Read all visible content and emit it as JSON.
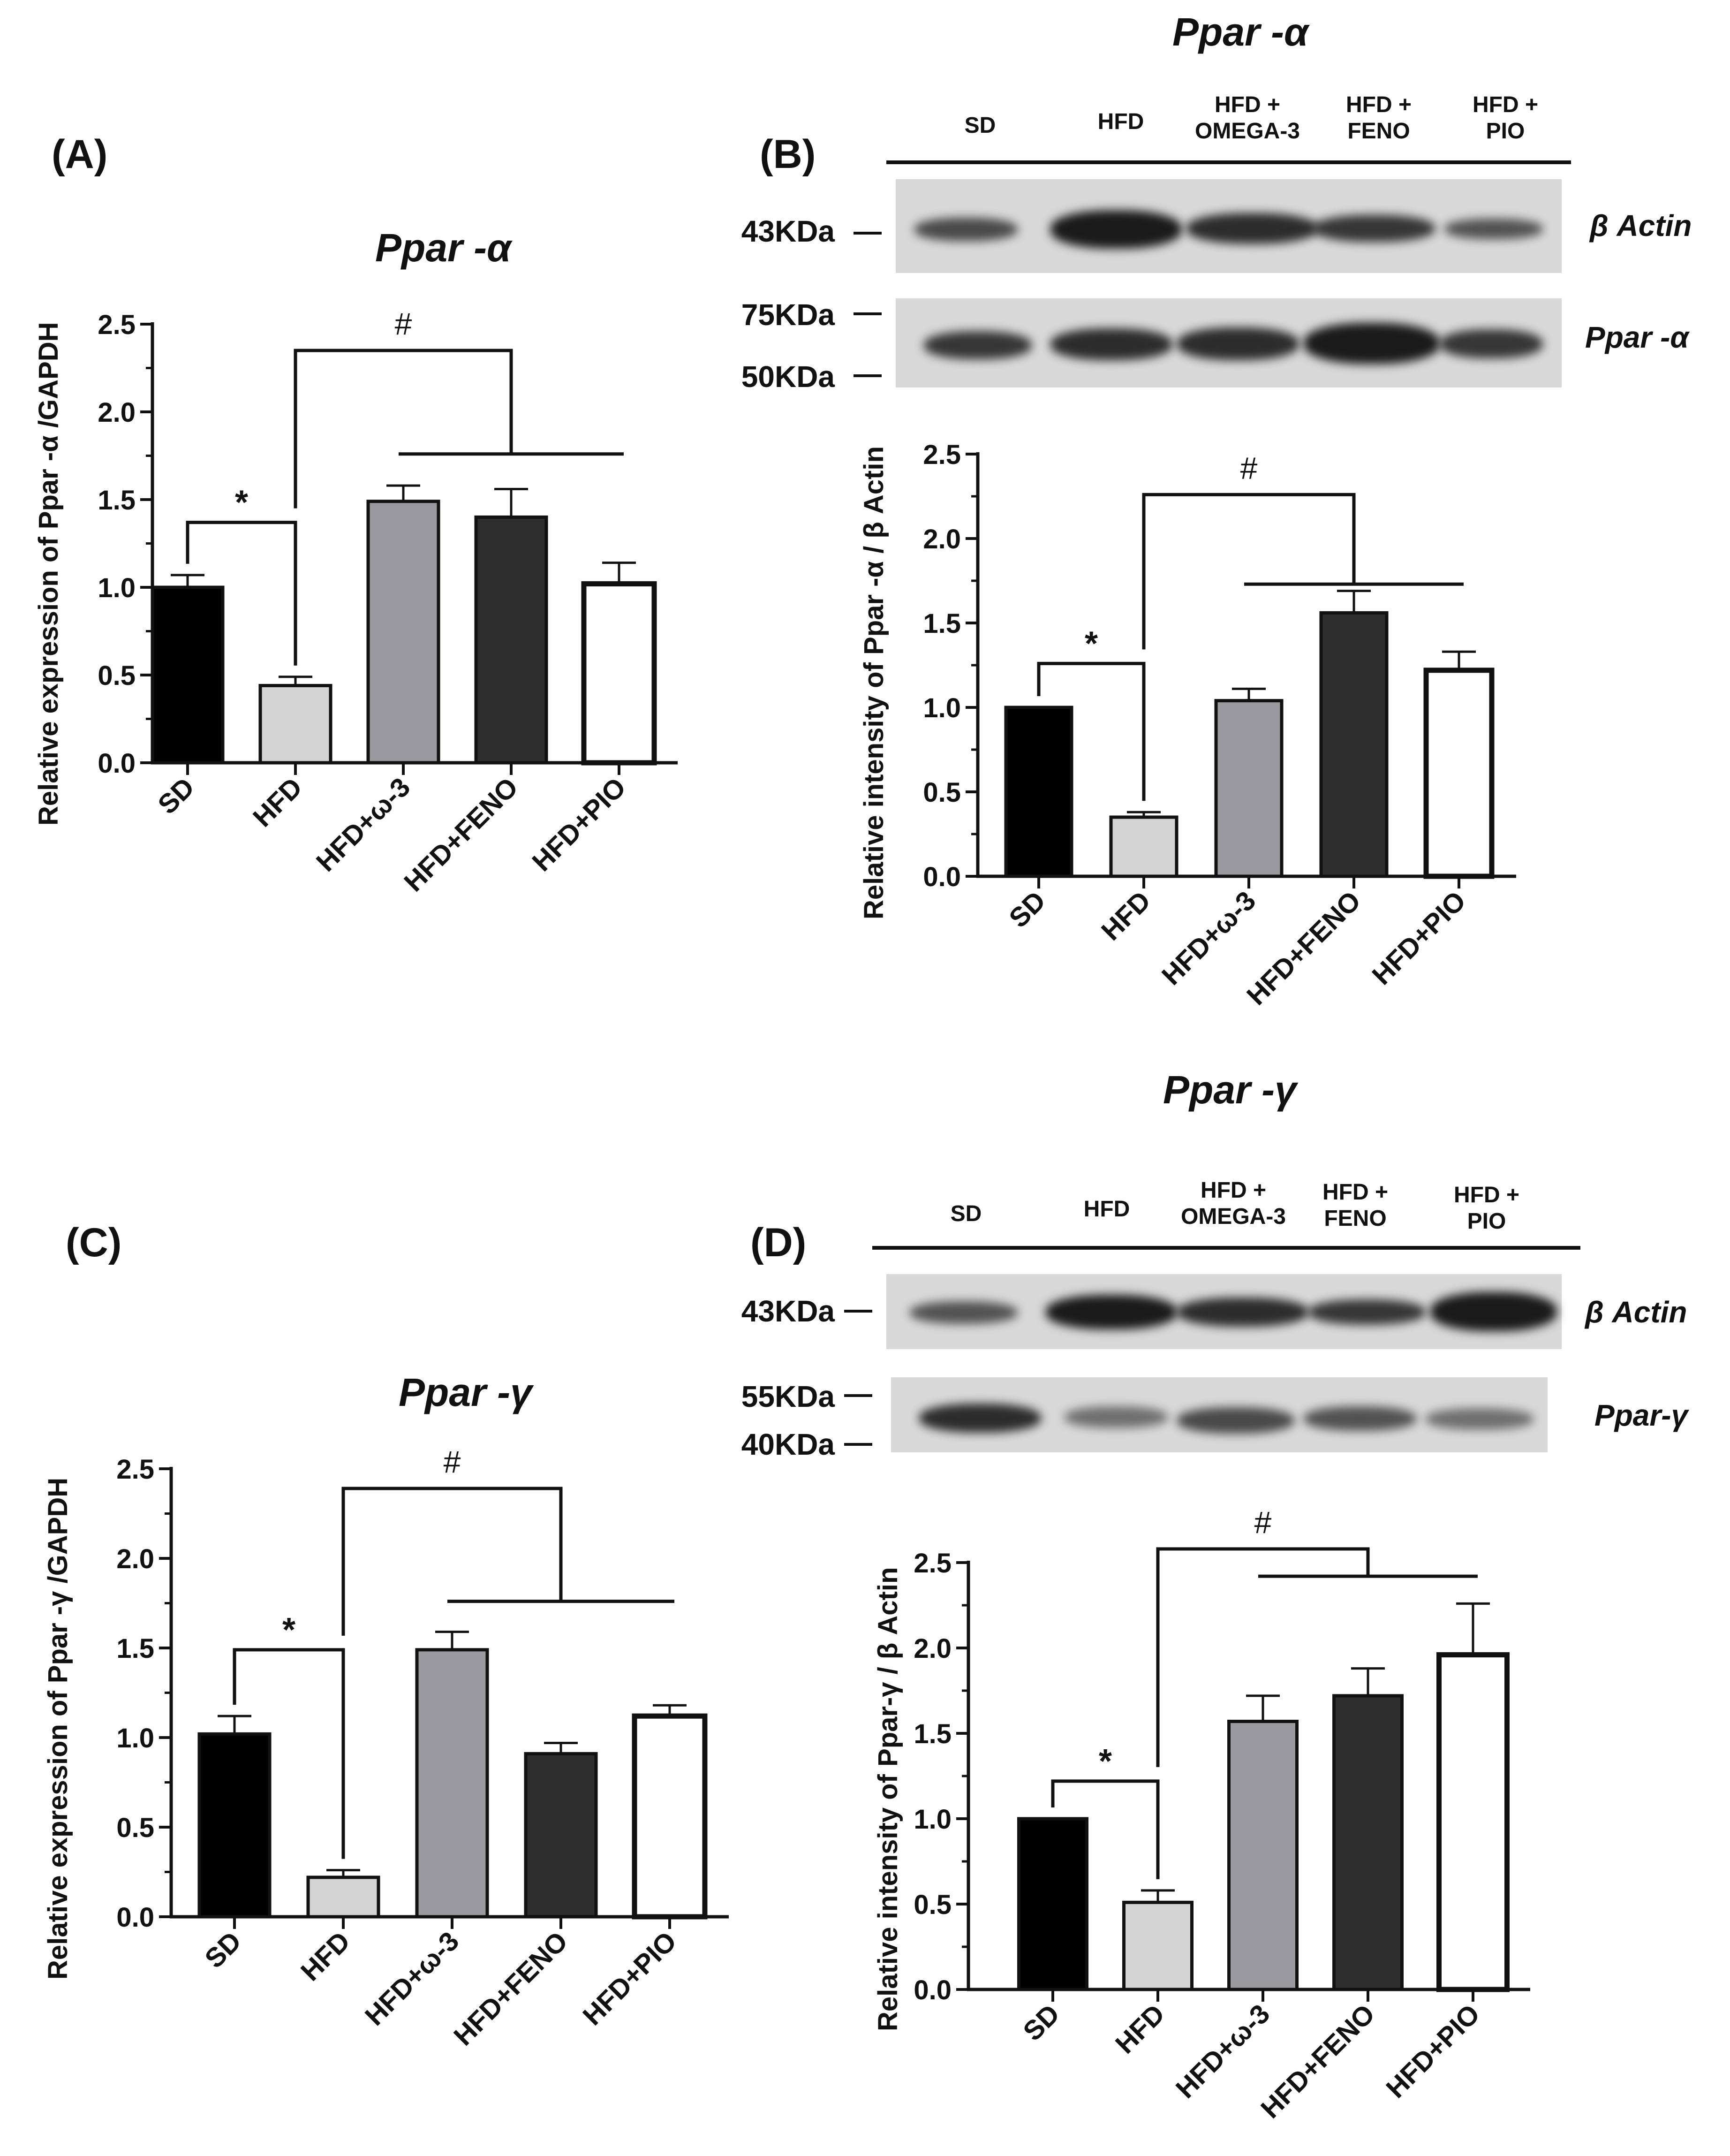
{
  "panels": {
    "A": {
      "label": "(A)",
      "title": "Ppar -α",
      "ylabel": "Relative expression of Ppar -α /GAPDH"
    },
    "B": {
      "label": "(B)",
      "title": "Ppar -α",
      "ylabel": "Relative intensity of Ppar -α / β Actin",
      "lanes": [
        "SD",
        "HFD",
        "HFD +\nOMEGA-3",
        "HFD +\nFENO",
        "HFD +\nPIO"
      ],
      "markers": {
        "actin": "43KDa",
        "upper": "75KDa",
        "lower": "50KDa"
      },
      "band_labels": {
        "actin": "β Actin",
        "target": "Ppar -α"
      }
    },
    "C": {
      "label": "(C)",
      "title": "Ppar -γ",
      "ylabel": "Relative expression of Ppar -γ /GAPDH"
    },
    "D": {
      "label": "(D)",
      "title": "Ppar -γ",
      "ylabel": "Relative intensity of Ppar-γ / β Actin",
      "lanes": [
        "SD",
        "HFD",
        "HFD +\nOMEGA-3",
        "HFD +\nFENO",
        "HFD +\nPIO"
      ],
      "markers": {
        "actin": "43KDa",
        "upper": "55KDa",
        "lower": "40KDa"
      },
      "band_labels": {
        "actin": "β Actin",
        "target": "Ppar-γ"
      }
    }
  },
  "chart_data": [
    {
      "id": "A",
      "type": "bar",
      "categories": [
        "SD",
        "HFD",
        "HFD+ω-3",
        "HFD+FENO",
        "HFD+PIO"
      ],
      "values": [
        1.0,
        0.44,
        1.49,
        1.4,
        1.02
      ],
      "errors": [
        0.07,
        0.05,
        0.09,
        0.16,
        0.12
      ],
      "ylabel": "Relative expression of Ppar -α /GAPDH",
      "ylim": [
        0,
        2.5
      ],
      "yticks": [
        "0.0",
        "0.5",
        "1.0",
        "1.5",
        "2.0",
        "2.5"
      ],
      "annotations": [
        "*",
        "#"
      ]
    },
    {
      "id": "B",
      "type": "bar",
      "categories": [
        "SD",
        "HFD",
        "HFD+ω-3",
        "HFD+FENO",
        "HFD+PIO"
      ],
      "values": [
        1.0,
        0.35,
        1.04,
        1.56,
        1.22
      ],
      "errors": [
        0.0,
        0.03,
        0.07,
        0.13,
        0.11
      ],
      "ylabel": "Relative intensity of Ppar -α / β Actin",
      "ylim": [
        0,
        2.5
      ],
      "yticks": [
        "0.0",
        "0.5",
        "1.0",
        "1.5",
        "2.0",
        "2.5"
      ],
      "annotations": [
        "*",
        "#"
      ]
    },
    {
      "id": "C",
      "type": "bar",
      "categories": [
        "SD",
        "HFD",
        "HFD+ω-3",
        "HFD+FENO",
        "HFD+PIO"
      ],
      "values": [
        1.02,
        0.22,
        1.49,
        0.91,
        1.12
      ],
      "errors": [
        0.1,
        0.04,
        0.1,
        0.06,
        0.06
      ],
      "ylabel": "Relative expression of Ppar -γ /GAPDH",
      "ylim": [
        0,
        2.5
      ],
      "yticks": [
        "0.0",
        "0.5",
        "1.0",
        "1.5",
        "2.0",
        "2.5"
      ],
      "annotations": [
        "*",
        "#"
      ]
    },
    {
      "id": "D",
      "type": "bar",
      "categories": [
        "SD",
        "HFD",
        "HFD+ω-3",
        "HFD+FENO",
        "HFD+PIO"
      ],
      "values": [
        1.0,
        0.51,
        1.57,
        1.72,
        1.96
      ],
      "errors": [
        0.0,
        0.07,
        0.15,
        0.16,
        0.3
      ],
      "ylabel": "Relative intensity of Ppar-γ / β Actin",
      "ylim": [
        0,
        2.5
      ],
      "yticks": [
        "0.0",
        "0.5",
        "1.0",
        "1.5",
        "2.0",
        "2.5"
      ],
      "annotations": [
        "*",
        "#"
      ]
    }
  ],
  "style": {
    "bar_fills": [
      "#000000",
      "#d4d4d4",
      "#9a9a9e",
      "#2e2e2e",
      "#ffffff"
    ]
  }
}
